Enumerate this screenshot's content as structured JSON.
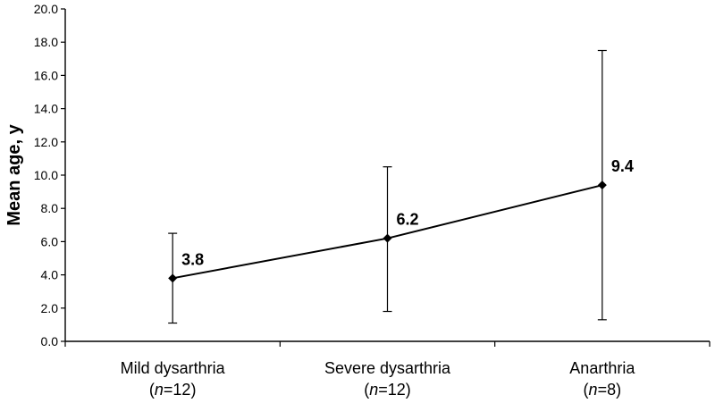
{
  "chart_data": {
    "type": "line",
    "title": "",
    "ylabel": "Mean age, y",
    "xlabel": "",
    "ylim": [
      0,
      20
    ],
    "yticks": [
      0,
      2,
      4,
      6,
      8,
      10,
      12,
      14,
      16,
      18,
      20
    ],
    "ytick_labels": [
      "0.0",
      "2.0",
      "4.0",
      "6.0",
      "8.0",
      "10.0",
      "12.0",
      "14.0",
      "16.0",
      "18.0",
      "20.0"
    ],
    "grid": false,
    "legend": "none",
    "categories": [
      {
        "name": "Mild dysarthria",
        "n_prefix": "(",
        "n_italic": "n",
        "n_suffix": "=12)"
      },
      {
        "name": "Severe dysarthria",
        "n_prefix": "(",
        "n_italic": "n",
        "n_suffix": "=12)"
      },
      {
        "name": "Anarthria",
        "n_prefix": "(",
        "n_italic": "n",
        "n_suffix": "=8)"
      }
    ],
    "series": [
      {
        "values": [
          3.8,
          6.2,
          9.4
        ],
        "labels": [
          "3.8",
          "6.2",
          "9.4"
        ],
        "error_low": [
          1.1,
          1.8,
          1.3
        ],
        "error_high": [
          6.5,
          10.5,
          17.5
        ],
        "color": "#000000",
        "marker": "diamond"
      }
    ]
  }
}
